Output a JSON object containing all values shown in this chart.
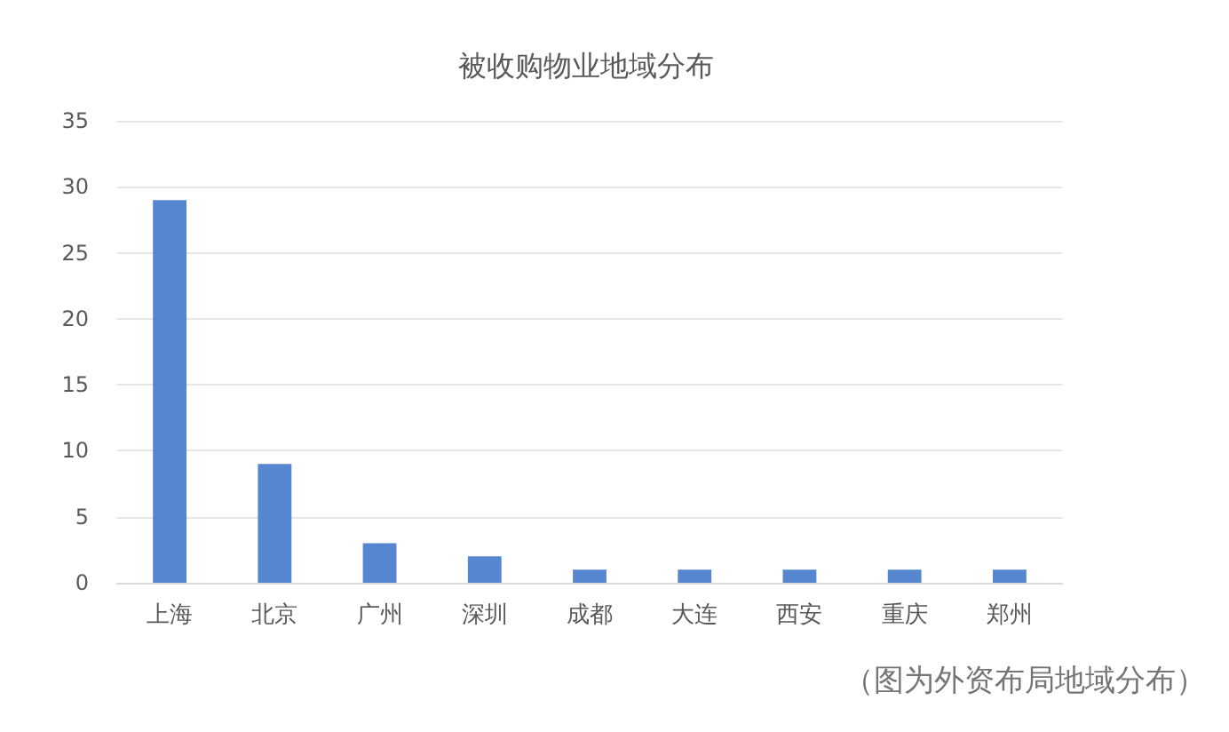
{
  "chart_data": {
    "type": "bar",
    "title": "被收购物业地域分布",
    "categories": [
      "上海",
      "北京",
      "广州",
      "深圳",
      "成都",
      "大连",
      "西安",
      "重庆",
      "郑州"
    ],
    "values": [
      29,
      9,
      3,
      2,
      1,
      1,
      1,
      1,
      1
    ],
    "color": "#5586cf",
    "ylim": [
      0,
      35
    ],
    "yticks": [
      0,
      5,
      10,
      15,
      20,
      25,
      30,
      35
    ],
    "grid": "y",
    "annotations": [
      "（图为外资布局地域分布）"
    ]
  }
}
